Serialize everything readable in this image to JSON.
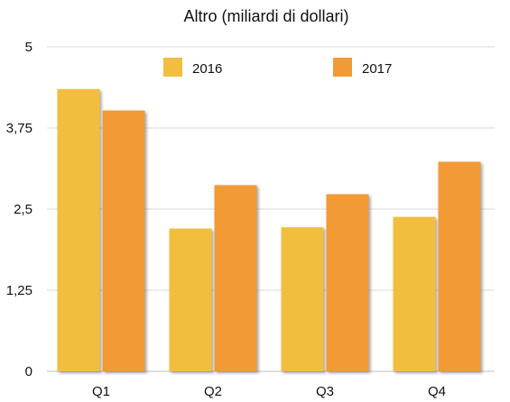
{
  "chart_data": {
    "type": "bar",
    "title": "Altro (miliardi di dollari)",
    "xlabel": "",
    "ylabel": "",
    "categories": [
      "Q1",
      "Q2",
      "Q3",
      "Q4"
    ],
    "ylim": [
      0,
      5
    ],
    "yticks": [
      0,
      1.25,
      2.5,
      3.75,
      5
    ],
    "ytick_labels": [
      "0",
      "1,25",
      "2,5",
      "3,75",
      "5"
    ],
    "grid": true,
    "legend_position": "top-center",
    "series": [
      {
        "name": "2016",
        "color": "#F2BE3D",
        "values": [
          4.35,
          2.2,
          2.22,
          2.38
        ]
      },
      {
        "name": "2017",
        "color": "#F29A36",
        "values": [
          4.02,
          2.87,
          2.73,
          3.23
        ]
      }
    ]
  }
}
